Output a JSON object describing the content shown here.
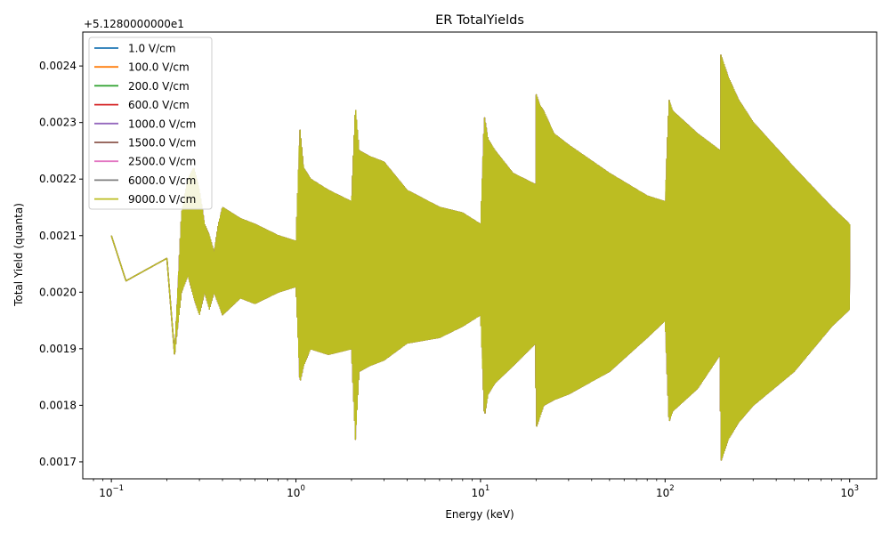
{
  "chart_data": {
    "type": "line",
    "title": "ER TotalYields",
    "xlabel": "Energy (keV)",
    "ylabel": "Total Yield (quanta)",
    "y_offset_label": "+5.1280000000e1",
    "x_scale": "log",
    "xlim": [
      0.07,
      1400
    ],
    "ylim": [
      0.00167,
      0.00246
    ],
    "grid": false,
    "legend_placement": "top-left",
    "x_ticks": [
      {
        "value": 0.1,
        "base": "10",
        "exp": "−1"
      },
      {
        "value": 1,
        "base": "10",
        "exp": "0"
      },
      {
        "value": 10,
        "base": "10",
        "exp": "1"
      },
      {
        "value": 100,
        "base": "10",
        "exp": "2"
      },
      {
        "value": 1000,
        "base": "10",
        "exp": "3"
      }
    ],
    "y_ticks": [
      "0.0017",
      "0.0018",
      "0.0019",
      "0.0020",
      "0.0021",
      "0.0022",
      "0.0023",
      "0.0024"
    ],
    "series": [
      {
        "name": "1.0 V/cm",
        "color": "#1f77b4"
      },
      {
        "name": "100.0 V/cm",
        "color": "#ff7f0e"
      },
      {
        "name": "200.0 V/cm",
        "color": "#2ca02c"
      },
      {
        "name": "600.0 V/cm",
        "color": "#d62728"
      },
      {
        "name": "1000.0 V/cm",
        "color": "#9467bd"
      },
      {
        "name": "1500.0 V/cm",
        "color": "#8c564b"
      },
      {
        "name": "2500.0 V/cm",
        "color": "#e377c2"
      },
      {
        "name": "6000.0 V/cm",
        "color": "#7f7f7f"
      },
      {
        "name": "9000.0 V/cm",
        "color": "#bcbd22"
      }
    ],
    "x": [
      0.1,
      0.12,
      0.2,
      0.22,
      0.24,
      0.26,
      0.28,
      0.3,
      0.32,
      0.34,
      0.36,
      0.38,
      0.4,
      0.5,
      0.6,
      0.8,
      1.0,
      1.05,
      1.1,
      1.2,
      1.5,
      2.0,
      2.1,
      2.2,
      2.5,
      3.0,
      4.0,
      6.0,
      8.0,
      10.0,
      10.5,
      11,
      12,
      15,
      19.9,
      20,
      21,
      22,
      25,
      30,
      50,
      80,
      100,
      105,
      110,
      150,
      199,
      200,
      210,
      220,
      250,
      300,
      500,
      800,
      1000
    ],
    "y_upper": [
      0.0021,
      0.00202,
      0.00206,
      0.00189,
      0.00214,
      0.0022,
      0.00222,
      0.00218,
      0.00212,
      0.0021,
      0.00207,
      0.00212,
      0.00215,
      0.00213,
      0.00212,
      0.0021,
      0.00209,
      0.00229,
      0.00222,
      0.0022,
      0.00218,
      0.00216,
      0.00233,
      0.00225,
      0.00224,
      0.00223,
      0.00218,
      0.00215,
      0.00214,
      0.00212,
      0.00231,
      0.00227,
      0.00225,
      0.00221,
      0.00219,
      0.00235,
      0.00233,
      0.00232,
      0.00228,
      0.00226,
      0.00221,
      0.00217,
      0.00216,
      0.00234,
      0.00232,
      0.00228,
      0.00225,
      0.00242,
      0.0024,
      0.00238,
      0.00234,
      0.0023,
      0.00222,
      0.00215,
      0.00212
    ],
    "y_lower": [
      0.0021,
      0.00202,
      0.00206,
      0.00189,
      0.002,
      0.00203,
      0.00199,
      0.00196,
      0.002,
      0.00197,
      0.002,
      0.00198,
      0.00196,
      0.00199,
      0.00198,
      0.002,
      0.00201,
      0.00184,
      0.00187,
      0.0019,
      0.00189,
      0.0019,
      0.00174,
      0.00186,
      0.00187,
      0.00188,
      0.00191,
      0.00192,
      0.00194,
      0.00196,
      0.00178,
      0.00182,
      0.00184,
      0.00187,
      0.00191,
      0.00176,
      0.00178,
      0.0018,
      0.00181,
      0.00182,
      0.00186,
      0.00192,
      0.00195,
      0.00177,
      0.00179,
      0.00183,
      0.00189,
      0.0017,
      0.00172,
      0.00174,
      0.00177,
      0.0018,
      0.00186,
      0.00194,
      0.00197
    ]
  }
}
